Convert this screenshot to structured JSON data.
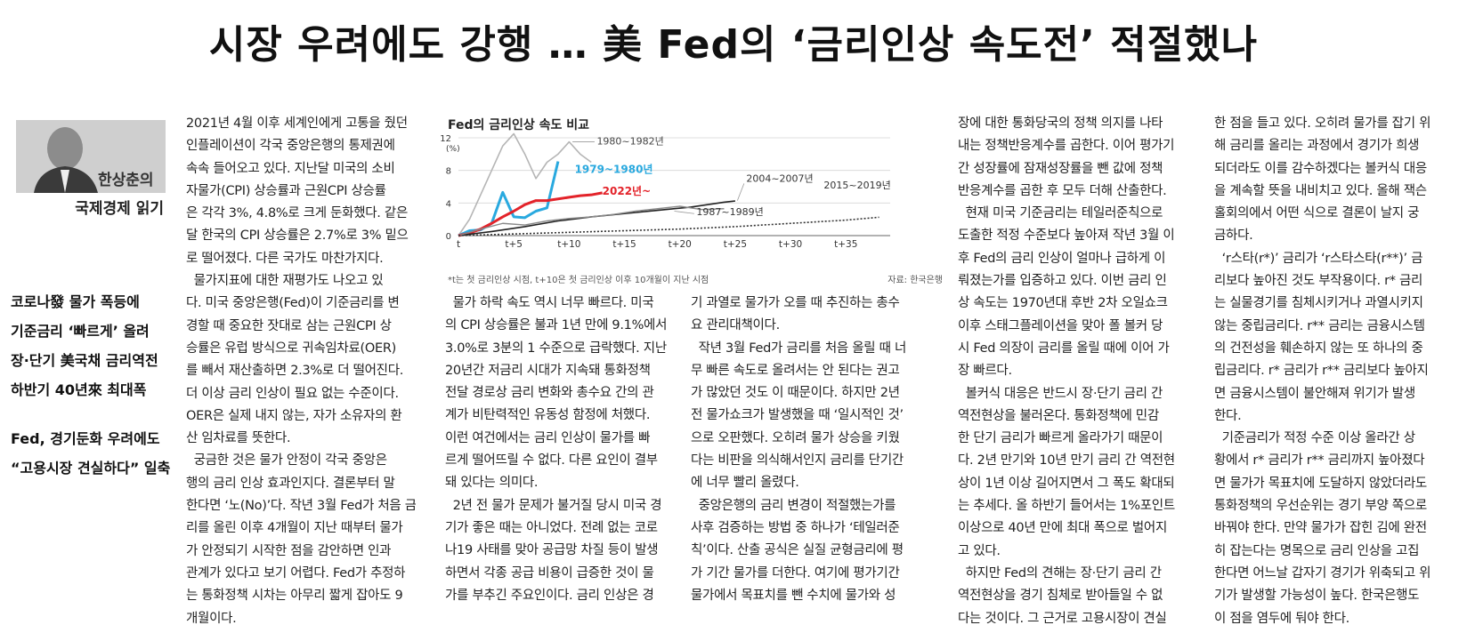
{
  "headline": "시장 우려에도 강행 … 美 Fed의 ‘금리인상 속도전’ 적절했나",
  "byline": {
    "name": "한상춘의",
    "column": "국제경제 읽기"
  },
  "subheads": [
    "코로나發 물가 폭등에",
    "기준금리 ‘빠르게’ 올려",
    "장·단기 美국채 금리역전",
    "하반기 40년來 최대폭",
    "",
    "Fed, 경기둔화 우려에도",
    "“고용시장 견실하다” 일축"
  ],
  "columns": {
    "c1": [
      "2021년 4월 이후 세계인에게 고통을 줬던",
      "인플레이션이 각국 중앙은행의 통제권에",
      "속속 들어오고 있다. 지난달 미국의 소비",
      "자물가(CPI) 상승률과 근원CPI 상승률",
      "은 각각 3%, 4.8%로 크게 둔화했다. 같은",
      "달 한국의 CPI 상승률은 2.7%로 3% 밑으",
      "로 떨어졌다. 다른 국가도 마찬가지다.",
      "  물가지표에 대한 재평가도 나오고 있",
      "다. 미국 중앙은행(Fed)이 기준금리를 변",
      "경할 때 중요한 잣대로 삼는 근원CPI 상",
      "승률은 유럽 방식으로 귀속임차료(OER)",
      "를 빼서 재산출하면 2.3%로 더 떨어진다.",
      "더 이상 금리 인상이 필요 없는 수준이다.",
      "OER은 실제 내지 않는, 자가 소유자의 환",
      "산 임차료를 뜻한다.",
      "  궁금한 것은 물가 안정이 각국 중앙은",
      "행의 금리 인상 효과인지다. 결론부터 말",
      "한다면 ‘노(No)’다. 작년 3월 Fed가 처음 금",
      "리를 올린 이후 4개월이 지난 때부터 물가",
      "가 안정되기 시작한 점을 감안하면 인과",
      "관계가 있다고 보기 어렵다. Fed가 추정하",
      "는 통화정책 시차는 아무리 짧게 잡아도 9",
      "개월이다."
    ],
    "c2": [
      "  물가 하락 속도 역시 너무 빠르다. 미국",
      "의 CPI 상승률은 불과 1년 만에 9.1%에서",
      "3.0%로 3분의 1 수준으로 급락했다. 지난",
      "20년간 저금리 시대가 지속돼 통화정책",
      "전달 경로상 금리 변화와 총수요 간의 관",
      "계가 비탄력적인 유동성 함정에 처했다.",
      "이런 여건에서는 금리 인상이 물가를 빠",
      "르게 떨어뜨릴 수 없다. 다른 요인이 결부",
      "돼 있다는 의미다.",
      "  2년 전 물가 문제가 불거질 당시 미국 경",
      "기가 좋은 때는 아니었다. 전례 없는 코로",
      "나19 사태를 맞아 공급망 차질 등이 발생",
      "하면서 각종 공급 비용이 급증한 것이 물",
      "가를 부추긴 주요인이다. 금리 인상은 경"
    ],
    "c3": [
      "기 과열로 물가가 오를 때 추진하는 총수",
      "요 관리대책이다.",
      "  작년 3월 Fed가 금리를 처음 올릴 때 너",
      "무 빠른 속도로 올려서는 안 된다는 권고",
      "가 많았던 것도 이 때문이다. 하지만 2년",
      "전 물가쇼크가 발생했을 때 ‘일시적인 것’",
      "으로 오판했다. 오히려 물가 상승을 키웠",
      "다는 비판을 의식해서인지 금리를 단기간",
      "에 너무 빨리 올렸다.",
      "  중앙은행의 금리 변경이 적절했는가를",
      "사후 검증하는 방법 중 하나가 ‘테일러준",
      "칙’이다. 산출 공식은 실질 균형금리에 평",
      "가 기간 물가를 더한다. 여기에 평가기간",
      "물가에서 목표치를 뺀 수치에 물가와 성"
    ],
    "c4": [
      "장에 대한 통화당국의 정책 의지를 나타",
      "내는 정책반응계수를 곱한다. 이어 평가기",
      "간 성장률에 잠재성장률을 뺀 값에 정책",
      "반응계수를 곱한 후 모두 더해 산출한다.",
      "  현재 미국 기준금리는 테일러준칙으로",
      "도출한 적정 수준보다 높아져 작년 3월 이",
      "후 Fed의 금리 인상이 얼마나 급하게 이",
      "뤄졌는가를 입증하고 있다. 이번 금리 인",
      "상 속도는 1970년대 후반 2차 오일쇼크",
      "이후 스태그플레이션을 맞아 폴 볼커 당",
      "시 Fed 의장이 금리를 올릴 때에 이어 가",
      "장 빠르다.",
      "  볼커식 대응은 반드시 장·단기 금리 간",
      "역전현상을 불러온다. 통화정책에 민감",
      "한 단기 금리가 빠르게 올라가기 때문이",
      "다. 2년 만기와 10년 만기 금리 간 역전현",
      "상이 1년 이상 길어지면서 그 폭도 확대되",
      "는 추세다. 올 하반기 들어서는 1%포인트",
      "이상으로 40년 만에 최대 폭으로 벌어지",
      "고 있다.",
      "  하지만 Fed의 견해는 장·단기 금리 간",
      "역전현상을 경기 침체로 받아들일 수 없",
      "다는 것이다. 그 근거로 고용시장이 견실"
    ],
    "c5": [
      "한 점을 들고 있다. 오히려 물가를 잡기 위",
      "해 금리를 올리는 과정에서 경기가 희생",
      "되더라도 이를 감수하겠다는 볼커식 대응",
      "을 계속할 뜻을 내비치고 있다. 올해 잭슨",
      "홀회의에서 어떤 식으로 결론이 날지 궁",
      "금하다.",
      "  ‘r스타(r*)’ 금리가 ‘r스타스타(r**)’ 금",
      "리보다 높아진 것도 부작용이다. r* 금리",
      "는 실물경기를 침체시키거나 과열시키지",
      "않는 중립금리다. r** 금리는 금융시스템",
      "의 건전성을 훼손하지 않는 또 하나의 중",
      "립금리다. r* 금리가 r** 금리보다 높아지",
      "면 금융시스템이 불안해져 위기가 발생",
      "한다.",
      "  기준금리가 적정 수준 이상 올라간 상",
      "황에서 r* 금리가 r** 금리까지 높아졌다",
      "면 물가가 목표치에 도달하지 않았더라도",
      "통화정책의 우선순위는 경기 부양 쪽으로",
      "바꿔야 한다. 만약 물가가 잡힌 김에 완전",
      "히 잡는다는 명목으로 금리 인상을 고집",
      "한다면 어느날 갑자기 경기가 위축되고 위",
      "기가 발생할 가능성이 높다. 한국은행도",
      "이 점을 염두에 둬야 한다."
    ]
  },
  "chart_data": {
    "type": "line",
    "title": "Fed의 금리인상 속도 비교",
    "ylabel": "(%)",
    "xlabel": "",
    "ylim": [
      0,
      12
    ],
    "xlim": [
      0,
      39
    ],
    "yticks": [
      "12",
      "8",
      "4",
      "0"
    ],
    "xticks": [
      {
        "x": 0,
        "label": "t"
      },
      {
        "x": 5,
        "label": "t+5"
      },
      {
        "x": 10,
        "label": "t+10"
      },
      {
        "x": 15,
        "label": "t+15"
      },
      {
        "x": 20,
        "label": "t+20"
      },
      {
        "x": 25,
        "label": "t+25"
      },
      {
        "x": 30,
        "label": "t+30"
      },
      {
        "x": 35,
        "label": "t+35"
      }
    ],
    "grid": true,
    "series": [
      {
        "name": "1980~1982년",
        "color": "#b5b5b5",
        "dash": "",
        "x": [
          0,
          1,
          2,
          3,
          4,
          5,
          6,
          7,
          8,
          9,
          10,
          11,
          12
        ],
        "y": [
          0,
          2,
          5,
          8,
          11,
          12.5,
          10,
          7,
          9,
          10,
          11.5,
          10,
          9
        ]
      },
      {
        "name": "1979~1980년",
        "color": "#29a9df",
        "dash": "",
        "x": [
          0,
          1,
          2,
          3,
          4,
          5,
          6,
          7,
          8,
          9
        ],
        "y": [
          0,
          0.6,
          0.7,
          1.5,
          5.3,
          2.3,
          2.2,
          3.0,
          3.4,
          9.1
        ]
      },
      {
        "name": "2022년~",
        "color": "#e3232a",
        "dash": "",
        "x": [
          0,
          1,
          2,
          3,
          4,
          5,
          6,
          7,
          8,
          9,
          10,
          11,
          12,
          13
        ],
        "y": [
          0,
          0.3,
          0.8,
          1.5,
          2.3,
          3.0,
          3.8,
          4.3,
          4.3,
          4.5,
          4.7,
          4.9,
          5.0,
          5.25
        ]
      },
      {
        "name": "2004~2007년",
        "color": "#222222",
        "dash": "",
        "x": [
          0,
          3,
          6,
          9,
          12,
          15,
          18,
          21,
          24,
          25
        ],
        "y": [
          0,
          0.5,
          1.1,
          1.8,
          2.3,
          2.7,
          3.1,
          3.5,
          4.1,
          4.25
        ]
      },
      {
        "name": "1987~1989년",
        "color": "#8a8a8a",
        "dash": "",
        "x": [
          0,
          2,
          4,
          6,
          8,
          10,
          12,
          14,
          16,
          18,
          20,
          22,
          24
        ],
        "y": [
          0,
          0.8,
          1.5,
          1.3,
          1.8,
          2.1,
          2.3,
          2.6,
          3.0,
          3.3,
          3.6,
          3.2,
          3.3
        ]
      },
      {
        "name": "2015~2019년",
        "color": "#333333",
        "dash": "2,2",
        "x": [
          0,
          5,
          10,
          15,
          20,
          25,
          30,
          35,
          38
        ],
        "y": [
          0,
          0.2,
          0.4,
          0.6,
          0.8,
          1.1,
          1.5,
          1.9,
          2.25
        ]
      }
    ],
    "note": "*t는 첫 금리인상 시점, t+10은 첫 금리인상 이후 10개월이 지난 시점",
    "source": "자료: 한국은행"
  }
}
